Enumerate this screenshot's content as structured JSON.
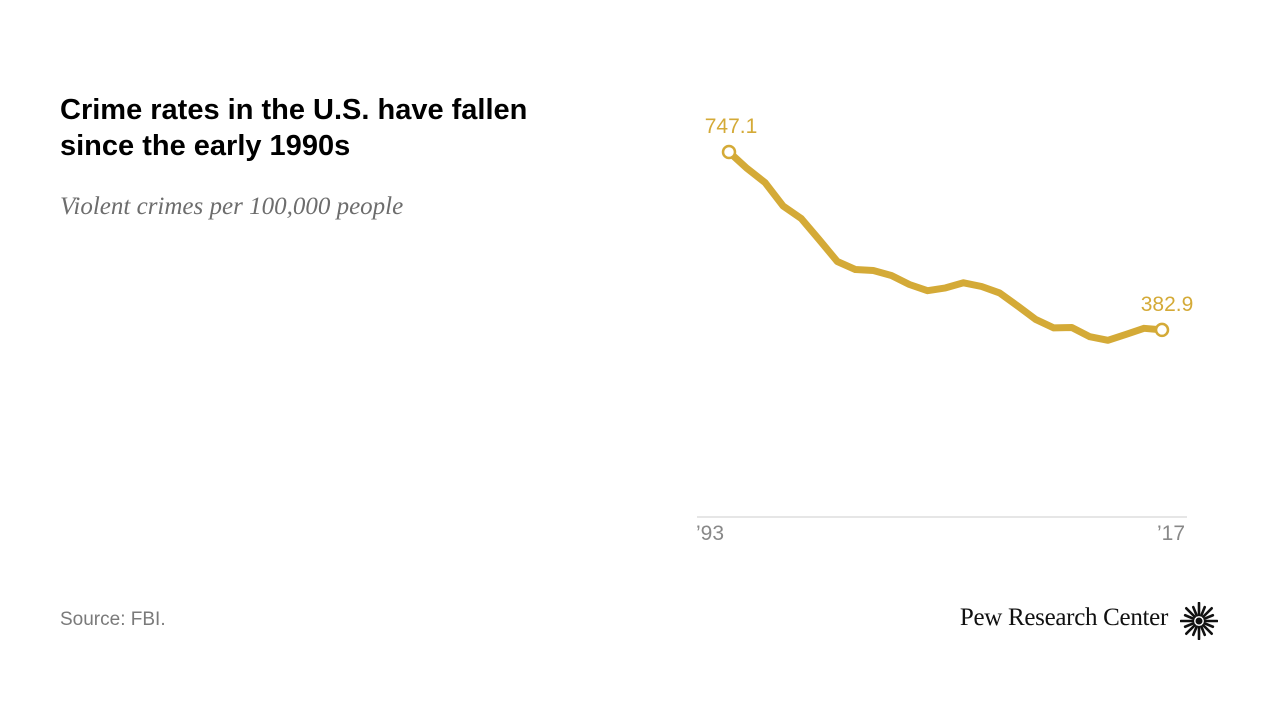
{
  "title": "Crime rates in the U.S. have fallen since the early 1990s",
  "subtitle": "Violent crimes per 100,000 people",
  "source": "Source: FBI.",
  "brand": "Pew Research Center",
  "brand_icon": "pew-sunburst-logo-icon",
  "colors": {
    "line": "#d4aa37",
    "axis": "#cccccc",
    "tick": "#888888",
    "title": "#000000"
  },
  "chart_data": {
    "type": "line",
    "x": [
      1993,
      1994,
      1995,
      1996,
      1997,
      1998,
      1999,
      2000,
      2001,
      2002,
      2003,
      2004,
      2005,
      2006,
      2007,
      2008,
      2009,
      2010,
      2011,
      2012,
      2013,
      2014,
      2015,
      2016,
      2017
    ],
    "series": [
      {
        "values": [
          747.1,
          713.6,
          684.5,
          636.6,
          611.0,
          567.6,
          523.0,
          506.5,
          504.5,
          494.4,
          475.8,
          463.2,
          469.0,
          479.3,
          471.8,
          458.6,
          431.9,
          404.5,
          387.1,
          387.8,
          369.1,
          361.6,
          373.7,
          386.3,
          382.9
        ]
      }
    ],
    "x_tick_labels": [
      "’93",
      "’17"
    ],
    "data_labels": [
      {
        "x": 1993,
        "text": "747.1"
      },
      {
        "x": 2017,
        "text": "382.9"
      }
    ],
    "ylim": [
      0,
      800
    ],
    "grid": false,
    "xlabel": "",
    "ylabel": ""
  }
}
